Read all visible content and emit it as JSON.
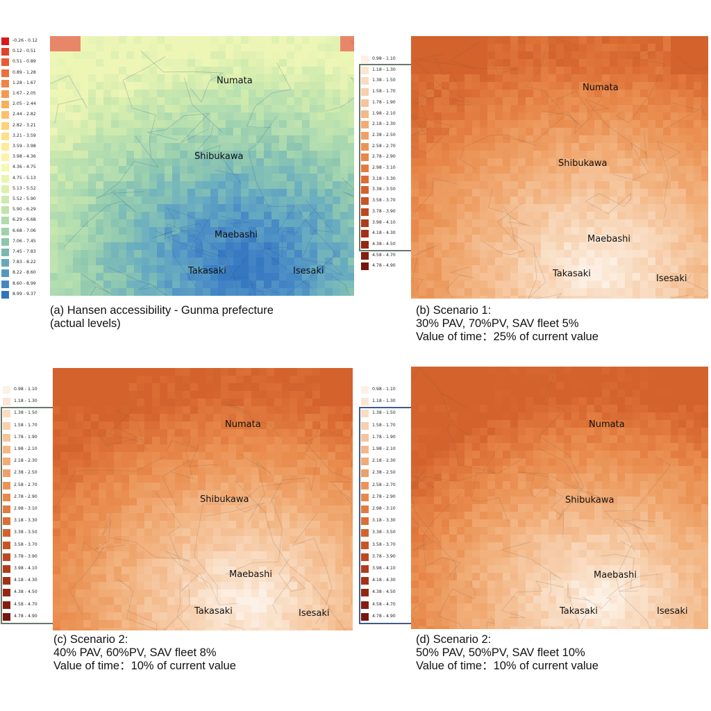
{
  "panels": [
    {
      "id": "a",
      "palette": "greenblue",
      "legend": [
        "-0.26 - 0.12",
        "0.12 - 0.51",
        "0.51 - 0.89",
        "0.89 - 1.28",
        "1.28 - 1.67",
        "1.67 - 2.05",
        "2.05 - 2.44",
        "2.44 - 2.82",
        "2.82 - 3.21",
        "3.21 - 3.59",
        "3.59 - 3.98",
        "3.98 - 4.36",
        "4.36 - 4.75",
        "4.75 - 5.13",
        "5.13 - 5.52",
        "5.52 - 5.90",
        "5.90 - 6.29",
        "6.29 - 6.68",
        "6.68 - 7.06",
        "7.06 - 7.45",
        "7.45 - 7.83",
        "7.83 - 8.22",
        "8.22 - 8.60",
        "8.60 - 8.99",
        "8.99 - 9.37"
      ],
      "legend_colors": [
        "#d7191c",
        "#e2402a",
        "#ea5a34",
        "#ee6d3b",
        "#f18345",
        "#f49a50",
        "#f8af5c",
        "#fbc167",
        "#fdd275",
        "#fee087",
        "#feea99",
        "#fef2ab",
        "#f7f8b4",
        "#eaf6b0",
        "#dcf1ad",
        "#cdeaab",
        "#bee4aa",
        "#aedcaa",
        "#9dd2aa",
        "#8cc6ad",
        "#7ab8b1",
        "#67a8b8",
        "#5598bf",
        "#4487c2",
        "#2e74bf"
      ],
      "caption": [
        "(a) Hansen accessibility - Gunma prefecture",
        "(actual levels)"
      ],
      "cities": [
        "Numata",
        "Shibukawa",
        "Maebashi",
        "Takasaki",
        "Isesaki"
      ]
    },
    {
      "id": "b",
      "palette": "orange",
      "legend": [
        "0.98 - 1.10",
        "1.18 - 1.30",
        "1.38 - 1.50",
        "1.58 - 1.70",
        "1.78 - 1.90",
        "1.98 - 2.10",
        "2.18 - 2.30",
        "2.38 - 2.50",
        "2.58 - 2.70",
        "2.78 - 2.90",
        "2.98 - 3.10",
        "3.18 - 3.30",
        "3.38 - 3.50",
        "3.58 - 3.70",
        "3.78 - 3.90",
        "3.98 - 4.10",
        "4.18 - 4.30",
        "4.38 - 4.50",
        "4.58 - 4.70",
        "4.78 - 4.90"
      ],
      "caption": [
        "(b) Scenario 1:",
        "30% PAV, 70%PV, SAV fleet 5%",
        "Value of time：25% of current value"
      ],
      "cities": [
        "Numata",
        "Shibukawa",
        "Maebashi",
        "Takasaki",
        "Isesaki"
      ]
    },
    {
      "id": "c",
      "palette": "orange",
      "legend": [
        "0.98 - 1.10",
        "1.18 - 1.30",
        "1.38 - 1.50",
        "1.58 - 1.70",
        "1.78 - 1.90",
        "1.98 - 2.10",
        "2.18 - 2.30",
        "2.38 - 2.50",
        "2.58 - 2.70",
        "2.78 - 2.90",
        "2.98 - 3.10",
        "3.18 - 3.30",
        "3.38 - 3.50",
        "3.58 - 3.70",
        "3.78 - 3.90",
        "3.98 - 4.10",
        "4.18 - 4.30",
        "4.38 - 4.50",
        "4.58 - 4.70",
        "4.78 - 4.90"
      ],
      "caption": [
        "(c) Scenario 2:",
        "40% PAV, 60%PV, SAV fleet 8%",
        "Value of time：10% of current value"
      ],
      "cities": [
        "Numata",
        "Shibukawa",
        "Maebashi",
        "Takasaki",
        "Isesaki"
      ]
    },
    {
      "id": "d",
      "palette": "orange",
      "legend": [
        "0.98 - 1.10",
        "1.18 - 1.30",
        "1.38 - 1.50",
        "1.58 - 1.70",
        "1.78 - 1.90",
        "1.98 - 2.10",
        "2.18 - 2.30",
        "2.38 - 2.50",
        "2.58 - 2.70",
        "2.78 - 2.90",
        "2.98 - 3.10",
        "3.18 - 3.30",
        "3.38 - 3.50",
        "3.58 - 3.70",
        "3.78 - 3.90",
        "3.98 - 4.10",
        "4.18 - 4.30",
        "4.38 - 4.50",
        "4.58 - 4.70",
        "4.78 - 4.90"
      ],
      "caption": [
        "(d) Scenario 2:",
        "50% PAV, 50%PV, SAV fleet 10%",
        "Value of time：10% of current value"
      ],
      "cities": [
        "Numata",
        "Shibukawa",
        "Maebashi",
        "Takasaki",
        "Isesaki"
      ]
    }
  ],
  "orange_colors": [
    "#fcf1e6",
    "#fbe6d3",
    "#f9dcc2",
    "#f7d0ae",
    "#f5c49b",
    "#f3b888",
    "#f1ac76",
    "#eea066",
    "#eb9457",
    "#e8884a",
    "#e27b3f",
    "#db6e35",
    "#d3622c",
    "#c95525",
    "#bd481f",
    "#b03c1a",
    "#a23116",
    "#932712",
    "#841e0f",
    "#76170d"
  ]
}
